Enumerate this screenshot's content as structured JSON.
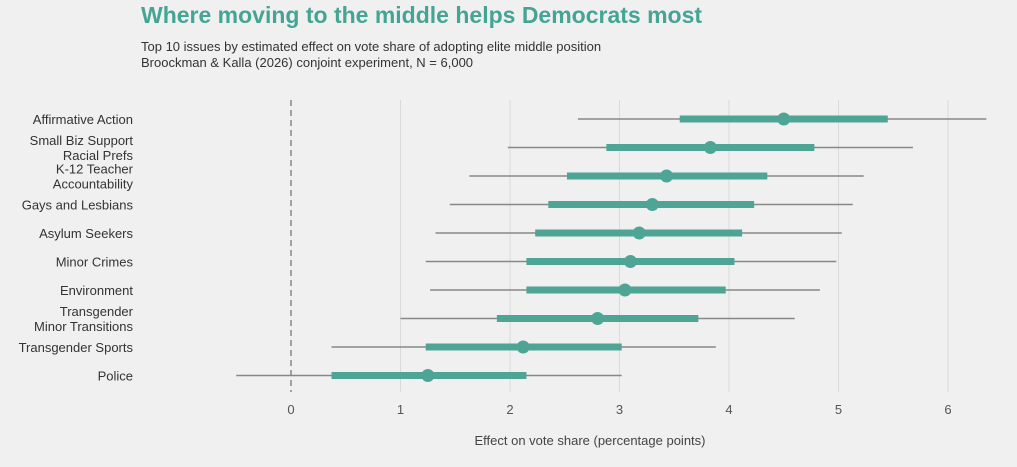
{
  "chart_data": {
    "type": "dot-interval",
    "title": "Where moving to the middle helps Democrats most",
    "subtitle": "Top 10 issues by estimated effect on vote share of adopting elite middle position",
    "source": "Broockman & Kalla (2026) conjoint experiment, N = 6,000",
    "xlabel": "Effect on vote share (percentage points)",
    "xlim": [
      -0.5,
      6.35
    ],
    "xticks": [
      0,
      1,
      2,
      3,
      4,
      5,
      6
    ],
    "grid": true,
    "reference_line": 0,
    "colors": {
      "point": "#4ea596",
      "inner_interval": "#4ea596",
      "outer_interval": "#888888",
      "title": "#45a595"
    },
    "items": [
      {
        "label": [
          "Affirmative Action"
        ],
        "estimate": 4.5,
        "inner": [
          3.55,
          5.45
        ],
        "outer": [
          2.62,
          6.35
        ]
      },
      {
        "label": [
          "Small Biz Support",
          "Racial Prefs"
        ],
        "estimate": 3.83,
        "inner": [
          2.88,
          4.78
        ],
        "outer": [
          1.98,
          5.68
        ]
      },
      {
        "label": [
          "K-12 Teacher",
          "Accountability"
        ],
        "estimate": 3.43,
        "inner": [
          2.52,
          4.35
        ],
        "outer": [
          1.63,
          5.23
        ]
      },
      {
        "label": [
          "Gays and Lesbians"
        ],
        "estimate": 3.3,
        "inner": [
          2.35,
          4.23
        ],
        "outer": [
          1.45,
          5.13
        ]
      },
      {
        "label": [
          "Asylum Seekers"
        ],
        "estimate": 3.18,
        "inner": [
          2.23,
          4.12
        ],
        "outer": [
          1.32,
          5.03
        ]
      },
      {
        "label": [
          "Minor Crimes"
        ],
        "estimate": 3.1,
        "inner": [
          2.15,
          4.05
        ],
        "outer": [
          1.23,
          4.98
        ]
      },
      {
        "label": [
          "Environment"
        ],
        "estimate": 3.05,
        "inner": [
          2.15,
          3.97
        ],
        "outer": [
          1.27,
          4.83
        ]
      },
      {
        "label": [
          "Transgender",
          "Minor Transitions"
        ],
        "estimate": 2.8,
        "inner": [
          1.88,
          3.72
        ],
        "outer": [
          1.0,
          4.6
        ]
      },
      {
        "label": [
          "Transgender Sports"
        ],
        "estimate": 2.12,
        "inner": [
          1.23,
          3.02
        ],
        "outer": [
          0.37,
          3.88
        ]
      },
      {
        "label": [
          "Police"
        ],
        "estimate": 1.25,
        "inner": [
          0.37,
          2.15
        ],
        "outer": [
          -0.5,
          3.02
        ]
      }
    ]
  }
}
